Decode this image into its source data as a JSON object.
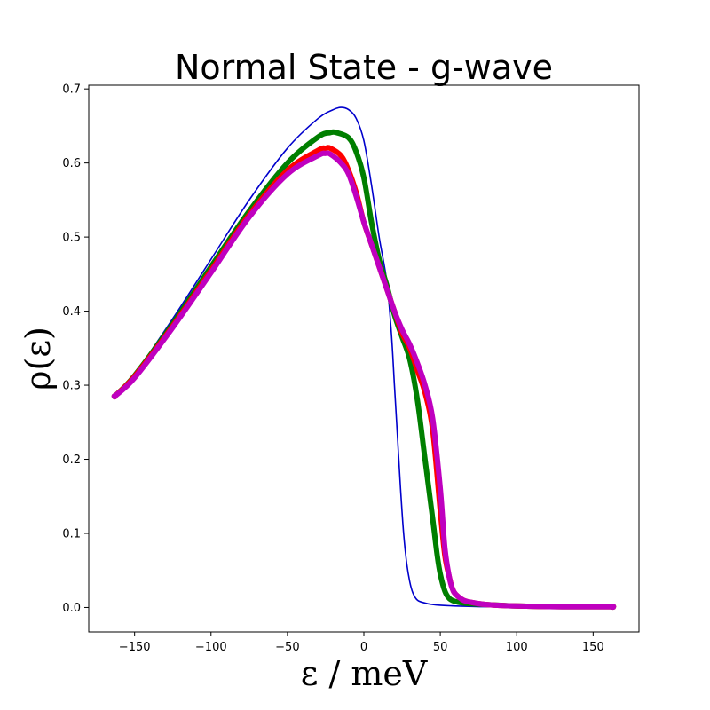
{
  "chart_data": {
    "type": "line",
    "title": "Normal State - g-wave",
    "xlabel": "ε / meV",
    "ylabel": "ρ(ε)",
    "xlim": [
      -180,
      180
    ],
    "ylim": [
      -0.033,
      0.705
    ],
    "xticks": [
      -150,
      -100,
      -50,
      0,
      50,
      100,
      150
    ],
    "yticks": [
      0.0,
      0.1,
      0.2,
      0.3,
      0.4,
      0.5,
      0.6,
      0.7
    ],
    "xtick_labels": [
      "−150",
      "−100",
      "−50",
      "0",
      "50",
      "100",
      "150"
    ],
    "ytick_labels": [
      "0.0",
      "0.1",
      "0.2",
      "0.3",
      "0.4",
      "0.5",
      "0.6",
      "0.7"
    ],
    "grid": false,
    "series": [
      {
        "color": "#0000cc",
        "style": "thin",
        "x": [
          -163,
          -150,
          -125,
          -100,
          -75,
          -50,
          -30,
          -20,
          -15,
          -10,
          -5,
          0,
          5,
          10,
          15,
          18,
          20,
          22,
          24,
          26,
          28,
          30,
          32,
          35,
          40,
          45,
          50,
          60,
          80,
          100,
          130,
          163
        ],
        "y": [
          0.285,
          0.315,
          0.39,
          0.47,
          0.55,
          0.62,
          0.66,
          0.672,
          0.675,
          0.672,
          0.66,
          0.63,
          0.57,
          0.5,
          0.44,
          0.37,
          0.3,
          0.23,
          0.16,
          0.1,
          0.06,
          0.035,
          0.02,
          0.01,
          0.006,
          0.004,
          0.003,
          0.002,
          0.001,
          0.001,
          0.0,
          0.0
        ]
      },
      {
        "color": "#007f00",
        "style": "thick",
        "x": [
          -163,
          -150,
          -125,
          -100,
          -75,
          -50,
          -30,
          -22,
          -18,
          -10,
          -5,
          0,
          5,
          10,
          15,
          20,
          25,
          30,
          35,
          40,
          45,
          48,
          50,
          53,
          56,
          60,
          65,
          70,
          80,
          100,
          130,
          163
        ],
        "y": [
          0.285,
          0.313,
          0.383,
          0.46,
          0.535,
          0.6,
          0.635,
          0.641,
          0.641,
          0.634,
          0.615,
          0.58,
          0.52,
          0.47,
          0.435,
          0.395,
          0.365,
          0.335,
          0.28,
          0.2,
          0.12,
          0.07,
          0.045,
          0.022,
          0.012,
          0.008,
          0.006,
          0.005,
          0.004,
          0.002,
          0.001,
          0.001
        ]
      },
      {
        "color": "#ff0000",
        "style": "thick",
        "x": [
          -163,
          -150,
          -125,
          -100,
          -75,
          -50,
          -30,
          -25,
          -22,
          -15,
          -10,
          -5,
          0,
          5,
          10,
          15,
          20,
          25,
          30,
          35,
          40,
          45,
          50,
          53,
          56,
          58,
          60,
          65,
          70,
          80,
          100,
          130,
          163
        ],
        "y": [
          0.285,
          0.312,
          0.38,
          0.455,
          0.53,
          0.59,
          0.617,
          0.62,
          0.62,
          0.61,
          0.59,
          0.56,
          0.52,
          0.49,
          0.46,
          0.43,
          0.4,
          0.37,
          0.35,
          0.32,
          0.29,
          0.24,
          0.13,
          0.07,
          0.04,
          0.025,
          0.018,
          0.01,
          0.007,
          0.004,
          0.002,
          0.001,
          0.001
        ]
      },
      {
        "color": "#bf00bf",
        "style": "thick",
        "x": [
          -163,
          -150,
          -125,
          -100,
          -75,
          -50,
          -30,
          -25,
          -22,
          -15,
          -10,
          -5,
          0,
          5,
          10,
          15,
          20,
          25,
          30,
          35,
          40,
          45,
          50,
          53,
          56,
          58,
          60,
          65,
          70,
          80,
          100,
          130,
          163
        ],
        "y": [
          0.285,
          0.31,
          0.378,
          0.452,
          0.527,
          0.585,
          0.61,
          0.613,
          0.612,
          0.6,
          0.585,
          0.555,
          0.52,
          0.49,
          0.46,
          0.43,
          0.4,
          0.375,
          0.355,
          0.33,
          0.3,
          0.255,
          0.16,
          0.08,
          0.04,
          0.025,
          0.018,
          0.01,
          0.007,
          0.004,
          0.002,
          0.001,
          0.001
        ]
      }
    ]
  }
}
